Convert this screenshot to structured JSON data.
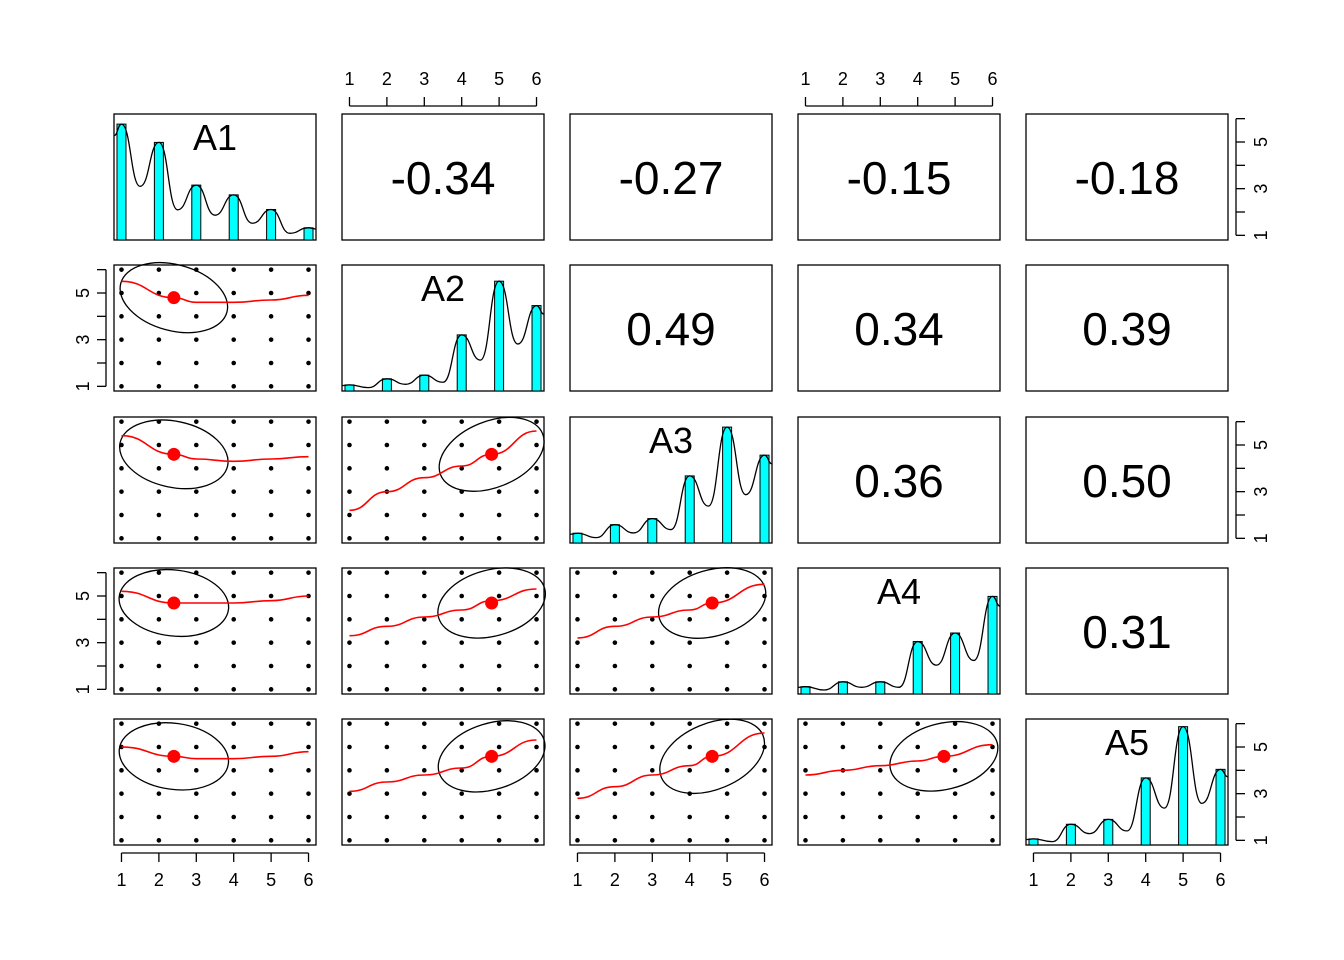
{
  "chart_data": {
    "type": "scatter",
    "variables": [
      "A1",
      "A2",
      "A3",
      "A4",
      "A5"
    ],
    "ticks": [
      1,
      2,
      3,
      4,
      5,
      6
    ],
    "side_ticks": [
      1,
      3,
      5
    ],
    "axis_range": [
      0.8,
      6.2
    ],
    "correlations": [
      {
        "row": 0,
        "col": 1,
        "label": "-0.34"
      },
      {
        "row": 0,
        "col": 2,
        "label": "-0.27"
      },
      {
        "row": 0,
        "col": 3,
        "label": "-0.15"
      },
      {
        "row": 0,
        "col": 4,
        "label": "-0.18"
      },
      {
        "row": 1,
        "col": 2,
        "label": "0.49"
      },
      {
        "row": 1,
        "col": 3,
        "label": "0.34"
      },
      {
        "row": 1,
        "col": 4,
        "label": "0.39"
      },
      {
        "row": 2,
        "col": 3,
        "label": "0.36"
      },
      {
        "row": 2,
        "col": 4,
        "label": "0.50"
      },
      {
        "row": 3,
        "col": 4,
        "label": "0.31"
      }
    ],
    "histograms": [
      [
        0.95,
        0.8,
        0.45,
        0.37,
        0.25,
        0.1
      ],
      [
        0.05,
        0.1,
        0.13,
        0.46,
        0.9,
        0.7
      ],
      [
        0.08,
        0.15,
        0.2,
        0.55,
        0.95,
        0.72
      ],
      [
        0.06,
        0.1,
        0.1,
        0.43,
        0.5,
        0.8
      ],
      [
        0.05,
        0.17,
        0.21,
        0.55,
        0.97,
        0.62
      ]
    ],
    "means": [
      2.4,
      4.8,
      4.6,
      4.7,
      4.6
    ],
    "loess": [
      {
        "row": 1,
        "col": 0,
        "points": [
          [
            1,
            5.5
          ],
          [
            2.4,
            4.8
          ],
          [
            3,
            4.6
          ],
          [
            4,
            4.6
          ],
          [
            5,
            4.7
          ],
          [
            6,
            4.9
          ]
        ]
      },
      {
        "row": 2,
        "col": 0,
        "points": [
          [
            1,
            5.4
          ],
          [
            2.4,
            4.6
          ],
          [
            3,
            4.4
          ],
          [
            4,
            4.3
          ],
          [
            5,
            4.4
          ],
          [
            6,
            4.5
          ]
        ]
      },
      {
        "row": 2,
        "col": 1,
        "points": [
          [
            1,
            2.2
          ],
          [
            2,
            3.0
          ],
          [
            3,
            3.6
          ],
          [
            4,
            4.1
          ],
          [
            4.8,
            4.6
          ],
          [
            6,
            5.6
          ]
        ]
      },
      {
        "row": 3,
        "col": 0,
        "points": [
          [
            1,
            5.2
          ],
          [
            2.4,
            4.7
          ],
          [
            3,
            4.7
          ],
          [
            4,
            4.7
          ],
          [
            5,
            4.8
          ],
          [
            6,
            5.0
          ]
        ]
      },
      {
        "row": 3,
        "col": 1,
        "points": [
          [
            1,
            3.3
          ],
          [
            2,
            3.7
          ],
          [
            3,
            4.1
          ],
          [
            4,
            4.4
          ],
          [
            4.8,
            4.8
          ],
          [
            6,
            5.3
          ]
        ]
      },
      {
        "row": 3,
        "col": 2,
        "points": [
          [
            1,
            3.2
          ],
          [
            2,
            3.7
          ],
          [
            3,
            4.1
          ],
          [
            4,
            4.4
          ],
          [
            4.6,
            4.7
          ],
          [
            6,
            5.5
          ]
        ]
      },
      {
        "row": 4,
        "col": 0,
        "points": [
          [
            1,
            5.0
          ],
          [
            2.4,
            4.6
          ],
          [
            3,
            4.5
          ],
          [
            4,
            4.5
          ],
          [
            5,
            4.6
          ],
          [
            6,
            4.8
          ]
        ]
      },
      {
        "row": 4,
        "col": 1,
        "points": [
          [
            1,
            3.1
          ],
          [
            2,
            3.5
          ],
          [
            3,
            3.8
          ],
          [
            4,
            4.1
          ],
          [
            4.8,
            4.6
          ],
          [
            6,
            5.3
          ]
        ]
      },
      {
        "row": 4,
        "col": 2,
        "points": [
          [
            1,
            2.8
          ],
          [
            2,
            3.3
          ],
          [
            3,
            3.8
          ],
          [
            4,
            4.2
          ],
          [
            4.6,
            4.6
          ],
          [
            6,
            5.6
          ]
        ]
      },
      {
        "row": 4,
        "col": 3,
        "points": [
          [
            1,
            3.8
          ],
          [
            2,
            4.0
          ],
          [
            3,
            4.2
          ],
          [
            4,
            4.4
          ],
          [
            4.7,
            4.6
          ],
          [
            6,
            5.1
          ]
        ]
      }
    ],
    "colors": {
      "bar": "#00ffff",
      "fit": "#ff0000",
      "points": "#000000",
      "frame": "#000000"
    }
  }
}
